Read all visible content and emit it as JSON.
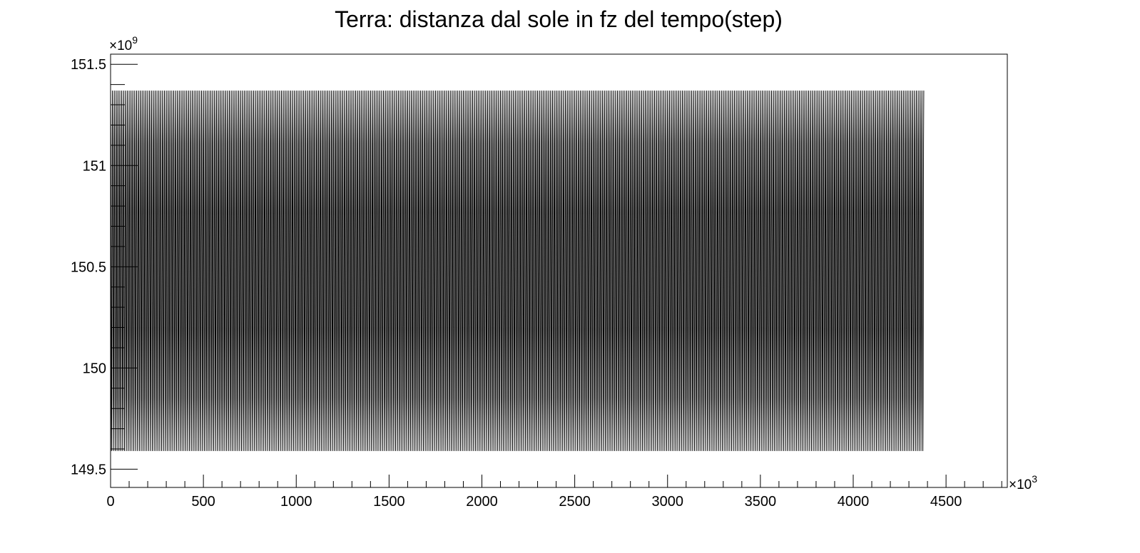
{
  "chart_data": {
    "type": "line",
    "title": "Terra: distanza dal sole in fz del tempo(step)",
    "xlabel": "",
    "ylabel": "",
    "x_exponent_label": "×10",
    "x_exponent_power": "3",
    "y_exponent_label": "×10",
    "y_exponent_power": "9",
    "xlim": [
      0,
      4830
    ],
    "ylim": [
      149.41,
      151.55
    ],
    "x_ticks": [
      0,
      500,
      1000,
      1500,
      2000,
      2500,
      3000,
      3500,
      4000,
      4500
    ],
    "x_tick_labels": [
      "0",
      "500",
      "1000",
      "1500",
      "2000",
      "2500",
      "3000",
      "3500",
      "4000",
      "4500"
    ],
    "y_ticks": [
      149.5,
      150,
      150.5,
      151,
      151.5
    ],
    "y_tick_labels": [
      "149.5",
      "150",
      "150.5",
      "151",
      "151.5"
    ],
    "series": [
      {
        "x_start": 0,
        "x_end": 4380,
        "period": 10,
        "y_min": 149.59,
        "y_max": 151.37,
        "color": "#000000"
      }
    ],
    "grid": false,
    "legend": "none"
  }
}
